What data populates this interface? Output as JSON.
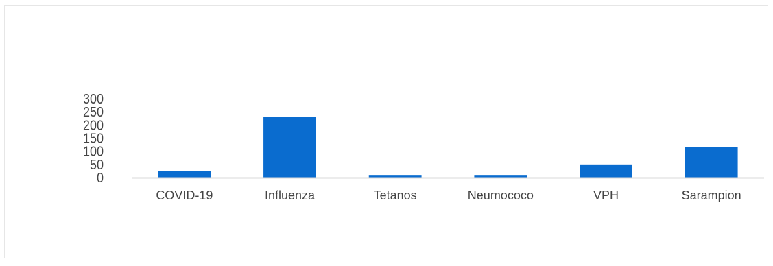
{
  "chart_data": {
    "type": "bar",
    "categories": [
      "COVID-19",
      "Influenza",
      "Tetanos",
      "Neumococo",
      "VPH",
      "Sarampion"
    ],
    "series": [
      {
        "values": [
          24,
          232,
          10,
          10,
          50,
          117
        ],
        "color": "#0a6ccf"
      }
    ],
    "ylim": [
      0,
      300
    ],
    "yticks": [
      "0",
      "50",
      "100",
      "150",
      "200",
      "250",
      "300"
    ],
    "grid": false,
    "legend": "none",
    "axis_color": "#d9d9d9"
  }
}
